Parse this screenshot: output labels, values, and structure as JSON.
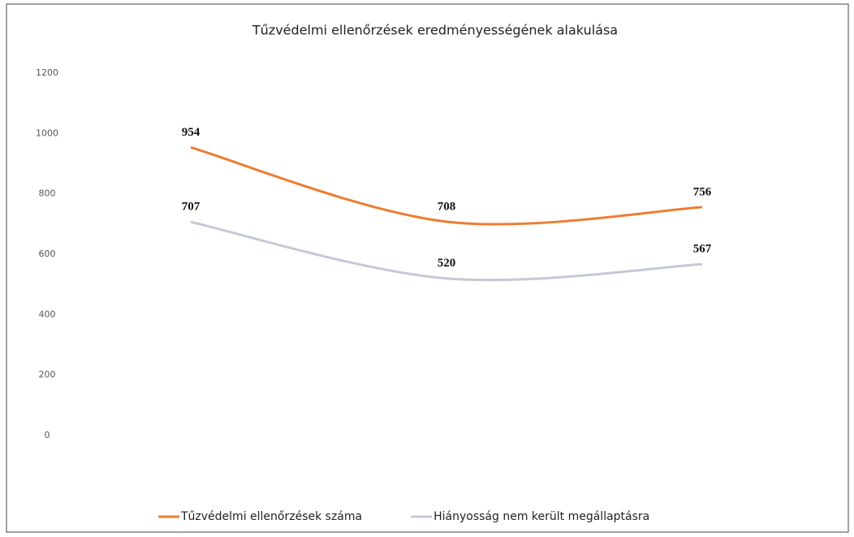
{
  "chart_data": {
    "type": "line",
    "title": "Tűzvédelmi ellenőrzések eredményességének alakulása",
    "categories": [
      null,
      null,
      null
    ],
    "series": [
      {
        "name": "Tűzvédelmi ellenőrzések száma",
        "color": "#ed7d31",
        "values": [
          954,
          708,
          756
        ]
      },
      {
        "name": "Hiányosság nem került megállaptásra",
        "color": "#c5c8d6",
        "values": [
          707,
          520,
          567
        ]
      }
    ],
    "ylim": [
      0,
      1200
    ],
    "yticks": [
      0,
      200,
      400,
      600,
      800,
      1000,
      1200
    ],
    "grid": false,
    "legend": "bottom",
    "data_labels": true,
    "smooth": true
  }
}
